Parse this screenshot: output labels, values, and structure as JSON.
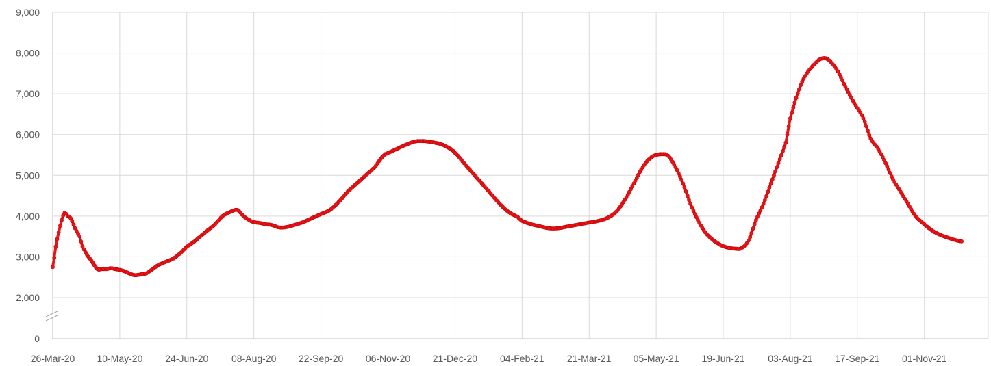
{
  "chart_data": {
    "type": "line",
    "title": "",
    "xlabel": "",
    "ylabel": "",
    "x_ticks": [
      "26-Mar-20",
      "10-May-20",
      "24-Jun-20",
      "08-Aug-20",
      "22-Sep-20",
      "06-Nov-20",
      "21-Dec-20",
      "04-Feb-21",
      "21-Mar-21",
      "05-May-21",
      "19-Jun-21",
      "03-Aug-21",
      "17-Sep-21",
      "01-Nov-21"
    ],
    "x_range": [
      "2020-03-26",
      "2021-12-30"
    ],
    "y_ticks": [
      "0",
      "2,000",
      "3,000",
      "4,000",
      "5,000",
      "6,000",
      "7,000",
      "8,000",
      "9,000"
    ],
    "y_tick_values": [
      0,
      2000,
      3000,
      4000,
      5000,
      6000,
      7000,
      8000,
      9000
    ],
    "y_axis_break": [
      0,
      2000
    ],
    "ylim": [
      0,
      9000
    ],
    "grid": true,
    "legend": "none",
    "series_color": "#e8161b",
    "series": [
      {
        "x": [
          "2020-03-26",
          "2020-03-28",
          "2020-03-30",
          "2020-04-01",
          "2020-04-03",
          "2020-04-05",
          "2020-04-07",
          "2020-04-10",
          "2020-04-13",
          "2020-04-15",
          "2020-04-18",
          "2020-04-21",
          "2020-04-25",
          "2020-04-28",
          "2020-05-01",
          "2020-05-04",
          "2020-05-07",
          "2020-05-10",
          "2020-05-13",
          "2020-05-16",
          "2020-05-20",
          "2020-05-24",
          "2020-05-28",
          "2020-06-01",
          "2020-06-05",
          "2020-06-10",
          "2020-06-15",
          "2020-06-20",
          "2020-06-24",
          "2020-06-28",
          "2020-07-03",
          "2020-07-08",
          "2020-07-13",
          "2020-07-18",
          "2020-07-23",
          "2020-07-28",
          "2020-08-01",
          "2020-08-05",
          "2020-08-08",
          "2020-08-12",
          "2020-08-16",
          "2020-08-20",
          "2020-08-25",
          "2020-08-30",
          "2020-09-04",
          "2020-09-10",
          "2020-09-16",
          "2020-09-22",
          "2020-09-28",
          "2020-10-04",
          "2020-10-10",
          "2020-10-16",
          "2020-10-22",
          "2020-10-28",
          "2020-11-03",
          "2020-11-06",
          "2020-11-12",
          "2020-11-18",
          "2020-11-24",
          "2020-11-30",
          "2020-12-06",
          "2020-12-12",
          "2020-12-18",
          "2020-12-21",
          "2020-12-27",
          "2021-01-02",
          "2021-01-08",
          "2021-01-14",
          "2021-01-20",
          "2021-01-26",
          "2021-02-01",
          "2021-02-04",
          "2021-02-10",
          "2021-02-16",
          "2021-02-22",
          "2021-02-28",
          "2021-03-06",
          "2021-03-12",
          "2021-03-18",
          "2021-03-21",
          "2021-03-27",
          "2021-04-02",
          "2021-04-08",
          "2021-04-14",
          "2021-04-20",
          "2021-04-26",
          "2021-05-01",
          "2021-05-05",
          "2021-05-09",
          "2021-05-13",
          "2021-05-18",
          "2021-05-23",
          "2021-05-28",
          "2021-06-02",
          "2021-06-07",
          "2021-06-12",
          "2021-06-16",
          "2021-06-19",
          "2021-06-23",
          "2021-06-27",
          "2021-07-01",
          "2021-07-06",
          "2021-07-11",
          "2021-07-16",
          "2021-07-21",
          "2021-07-26",
          "2021-07-31",
          "2021-08-03",
          "2021-08-07",
          "2021-08-11",
          "2021-08-15",
          "2021-08-19",
          "2021-08-23",
          "2021-08-27",
          "2021-08-31",
          "2021-09-04",
          "2021-09-08",
          "2021-09-13",
          "2021-09-17",
          "2021-09-21",
          "2021-09-26",
          "2021-10-01",
          "2021-10-06",
          "2021-10-11",
          "2021-10-16",
          "2021-10-21",
          "2021-10-26",
          "2021-11-01",
          "2021-11-06",
          "2021-11-11",
          "2021-11-16",
          "2021-11-21",
          "2021-11-26"
        ],
        "values": [
          2750,
          3250,
          3600,
          3900,
          4080,
          4000,
          3950,
          3700,
          3500,
          3250,
          3050,
          2900,
          2700,
          2700,
          2700,
          2720,
          2700,
          2680,
          2650,
          2600,
          2550,
          2570,
          2600,
          2700,
          2800,
          2880,
          2960,
          3100,
          3250,
          3350,
          3500,
          3650,
          3800,
          4000,
          4100,
          4150,
          4000,
          3900,
          3850,
          3830,
          3800,
          3780,
          3720,
          3730,
          3780,
          3850,
          3950,
          4050,
          4150,
          4350,
          4600,
          4800,
          5000,
          5200,
          5480,
          5550,
          5650,
          5750,
          5830,
          5840,
          5810,
          5760,
          5650,
          5550,
          5300,
          5050,
          4800,
          4550,
          4300,
          4100,
          3980,
          3880,
          3800,
          3750,
          3700,
          3700,
          3740,
          3780,
          3820,
          3840,
          3880,
          3950,
          4100,
          4400,
          4800,
          5200,
          5420,
          5500,
          5520,
          5480,
          5200,
          4800,
          4300,
          3900,
          3600,
          3420,
          3320,
          3260,
          3220,
          3200,
          3210,
          3400,
          3900,
          4300,
          4800,
          5300,
          5800,
          6400,
          6900,
          7300,
          7550,
          7720,
          7850,
          7870,
          7750,
          7550,
          7250,
          6900,
          6650,
          6400,
          5900,
          5650,
          5300,
          4900,
          4600,
          4300,
          4000,
          3800,
          3650,
          3550,
          3480,
          3420,
          3380
        ]
      }
    ]
  }
}
